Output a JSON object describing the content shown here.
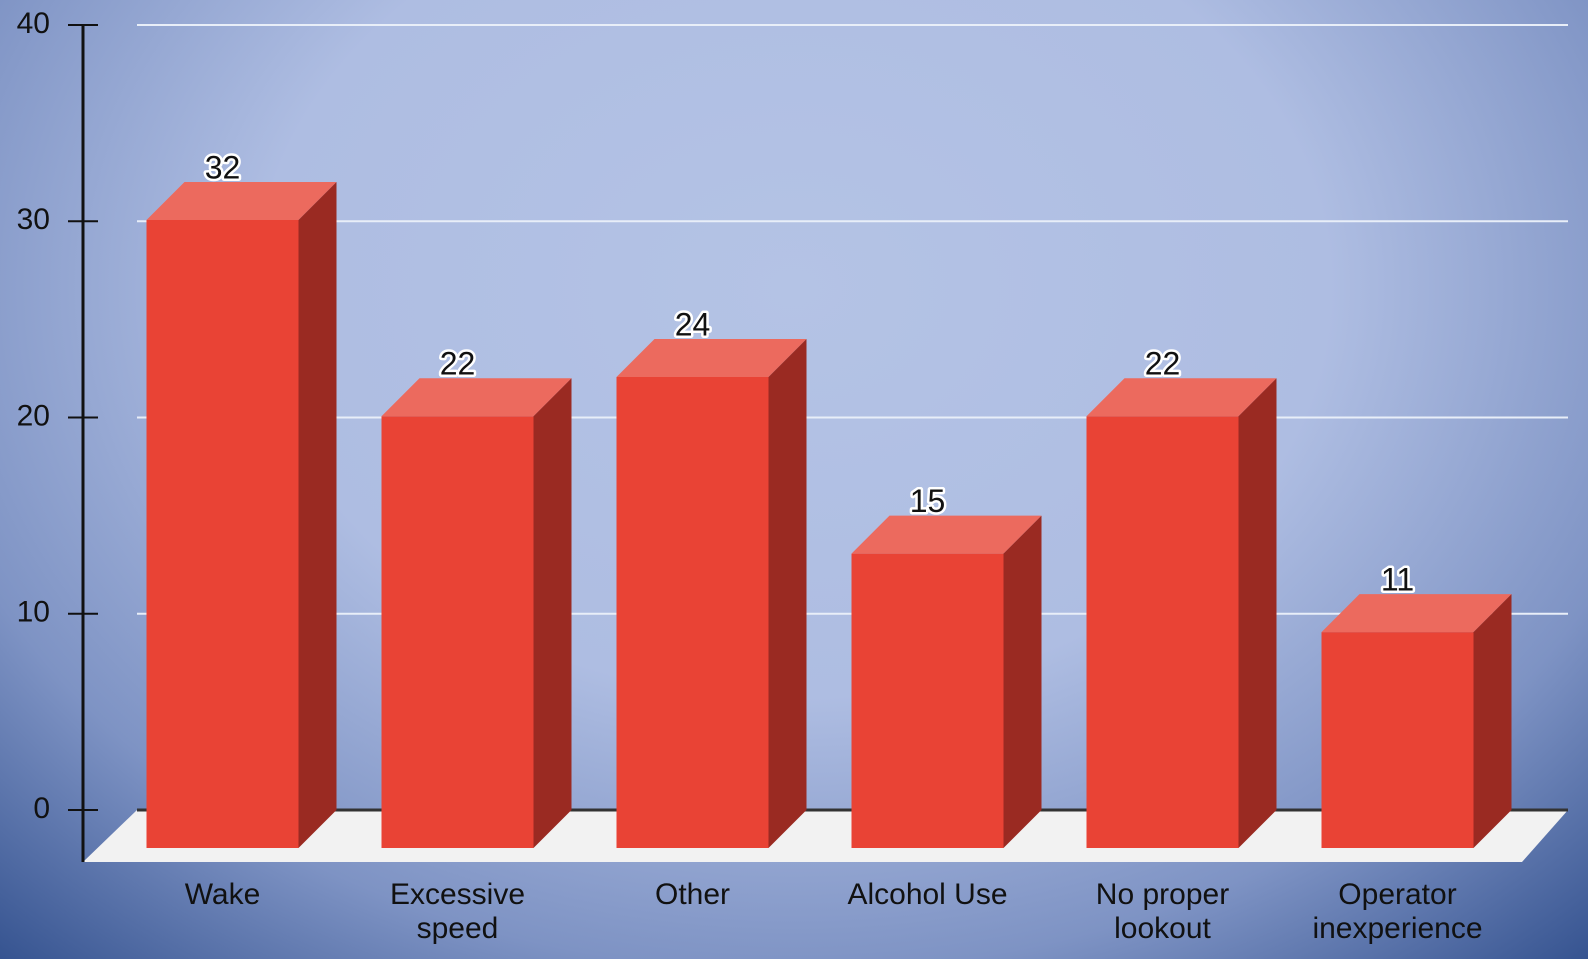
{
  "chart_data": {
    "type": "bar3d",
    "categories": [
      "Wake",
      "Excessive speed",
      "Other",
      "Alcohol Use",
      "No proper lookout",
      "Operator inexperience"
    ],
    "values": [
      32,
      22,
      24,
      15,
      22,
      11
    ],
    "color": "#e94335",
    "top_color": "#ec6a5e",
    "side_color": "#9a2a22",
    "ylim": [
      0,
      40
    ],
    "yticks": [
      0,
      10,
      20,
      30,
      40
    ],
    "grid": true
  }
}
